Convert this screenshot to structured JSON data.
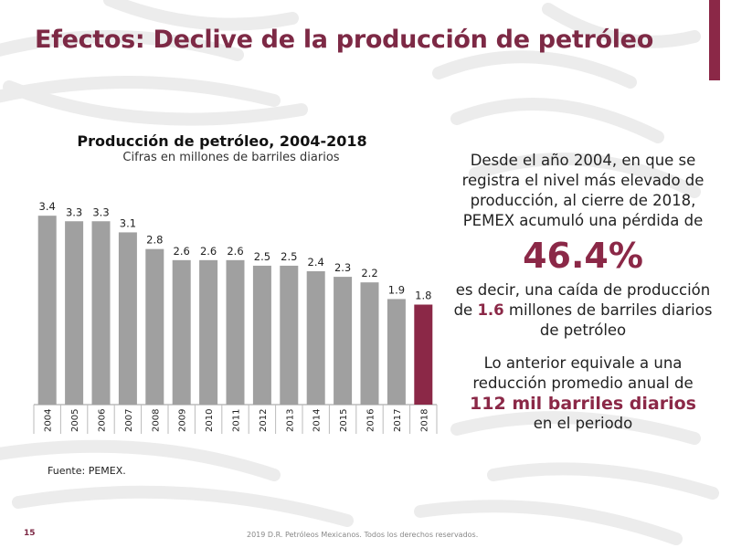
{
  "slide": {
    "title": "Efectos: Declive de la producción de petróleo",
    "page_number": "15",
    "copyright": "2019 D.R. Petróleos Mexicanos. Todos los derechos reservados.",
    "source": "Fuente: PEMEX.",
    "accent_color": "#8b2847"
  },
  "summary": {
    "line1": "Desde el año 2004, en que se registra el nivel más elevado de producción, al cierre de 2018, PEMEX acumuló una pérdida de",
    "big_value": "46.4%",
    "line2_pre": "es decir, una caída de producción de",
    "line2_value": "1.6",
    "line2_post": "millones de barriles diarios de petróleo",
    "line3": "Lo anterior equivale a una reducción promedio anual de",
    "line3_value": "112 mil barriles diarios",
    "line3_post": "en el periodo"
  },
  "chart_data": {
    "type": "bar",
    "title": "Producción de petróleo, 2004-2018",
    "subtitle": "Cifras en millones de barriles diarios",
    "categories": [
      "2004",
      "2005",
      "2006",
      "2007",
      "2008",
      "2009",
      "2010",
      "2011",
      "2012",
      "2013",
      "2014",
      "2015",
      "2016",
      "2017",
      "2018"
    ],
    "values": [
      3.4,
      3.3,
      3.3,
      3.1,
      2.8,
      2.6,
      2.6,
      2.6,
      2.5,
      2.5,
      2.4,
      2.3,
      2.2,
      1.9,
      1.8
    ],
    "value_labels": [
      "3.4",
      "3.3",
      "3.3",
      "3.1",
      "2.8",
      "2.6",
      "2.6",
      "2.6",
      "2.5",
      "2.5",
      "2.4",
      "2.3",
      "2.2",
      "1.9",
      "1.8"
    ],
    "highlight_index": 14,
    "colors": {
      "bar": "#a0a0a0",
      "highlight": "#8b2847"
    },
    "ylim": [
      0,
      3.6
    ],
    "grid": false,
    "legend": "none"
  }
}
